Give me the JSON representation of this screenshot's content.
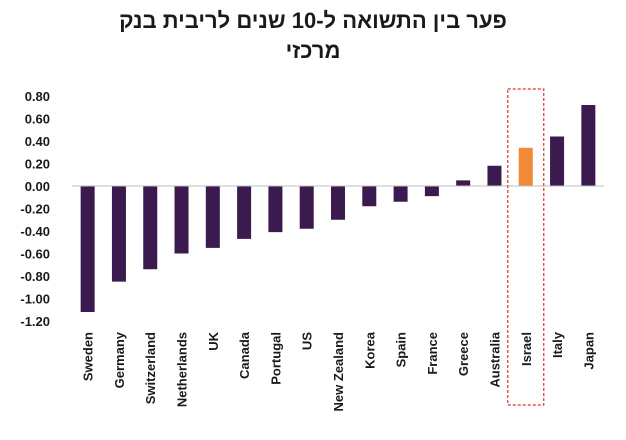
{
  "chart_data": {
    "type": "bar",
    "title_lines": [
      "פער בין התשואה ל-10 שנים לריבית בנק",
      "מרכזי"
    ],
    "categories": [
      "Sweden",
      "Germany",
      "Switzerland",
      "Netherlands",
      "UK",
      "Canada",
      "Portugal",
      "US",
      "New Zealand",
      "Korea",
      "Spain",
      "France",
      "Greece",
      "Australia",
      "Israel",
      "Italy",
      "Japan"
    ],
    "values": [
      -1.12,
      -0.85,
      -0.74,
      -0.6,
      -0.55,
      -0.47,
      -0.41,
      -0.38,
      -0.3,
      -0.18,
      -0.14,
      -0.09,
      0.05,
      0.18,
      0.34,
      0.44,
      0.72
    ],
    "ylim": [
      -1.2,
      0.8
    ],
    "yticks": [
      "0.80",
      "0.60",
      "0.40",
      "0.20",
      "0.00",
      "-0.20",
      "-0.40",
      "-0.60",
      "-0.80",
      "-1.00",
      "-1.20"
    ],
    "ytick_values": [
      0.8,
      0.6,
      0.4,
      0.2,
      0.0,
      -0.2,
      -0.4,
      -0.6,
      -0.8,
      -1.0,
      -1.2
    ],
    "highlight_category": "Israel",
    "colors": {
      "bar": "#3b1a4f",
      "highlight": "#f08a36",
      "highlight_box": "#e03030",
      "axis": "#bfbfbf"
    }
  }
}
